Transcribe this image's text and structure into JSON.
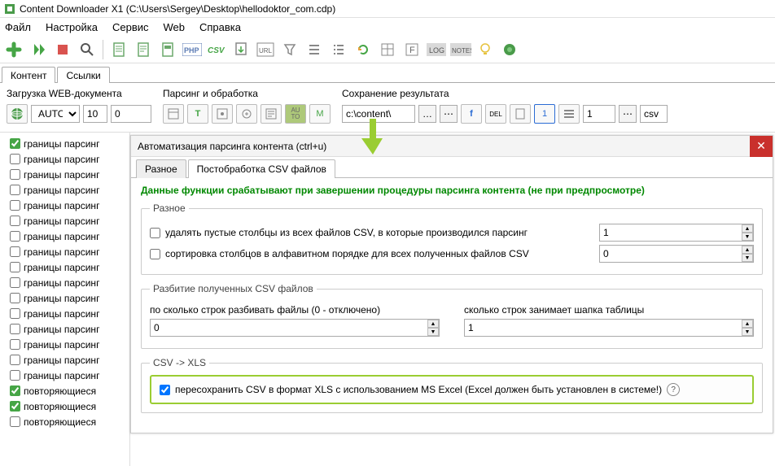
{
  "title": "Content Downloader X1 (C:\\Users\\Sergey\\Desktop\\hellodoktor_com.cdp)",
  "menu": {
    "file": "Файл",
    "settings": "Настройка",
    "service": "Сервис",
    "web": "Web",
    "help": "Справка"
  },
  "tabs": {
    "content": "Контент",
    "links": "Ссылки"
  },
  "ribbon": {
    "load": {
      "label": "Загрузка WEB-документа",
      "auto": "AUTO",
      "n1": "10",
      "n2": "0"
    },
    "parse": {
      "label": "Парсинг и обработка"
    },
    "save": {
      "label": "Сохранение результата",
      "path": "c:\\content\\",
      "num": "1",
      "fmt": "csv"
    }
  },
  "tree": {
    "items": [
      {
        "label": "границы парсинг",
        "checked": true
      },
      {
        "label": "границы парсинг",
        "checked": false
      },
      {
        "label": "границы парсинг",
        "checked": false
      },
      {
        "label": "границы парсинг",
        "checked": false
      },
      {
        "label": "границы парсинг",
        "checked": false
      },
      {
        "label": "границы парсинг",
        "checked": false
      },
      {
        "label": "границы парсинг",
        "checked": false
      },
      {
        "label": "границы парсинг",
        "checked": false
      },
      {
        "label": "границы парсинг",
        "checked": false
      },
      {
        "label": "границы парсинг",
        "checked": false
      },
      {
        "label": "границы парсинг",
        "checked": false
      },
      {
        "label": "границы парсинг",
        "checked": false
      },
      {
        "label": "границы парсинг",
        "checked": false
      },
      {
        "label": "границы парсинг",
        "checked": false
      },
      {
        "label": "границы парсинг",
        "checked": false
      },
      {
        "label": "границы парсинг",
        "checked": false
      },
      {
        "label": "повторяющиеся",
        "checked": true
      },
      {
        "label": "повторяющиеся",
        "checked": true
      },
      {
        "label": "повторяющиеся",
        "checked": false
      }
    ]
  },
  "dialog": {
    "title": "Автоматизация парсинга контента (ctrl+u)",
    "tabs": {
      "misc": "Разное",
      "post": "Постобработка CSV файлов"
    },
    "note": "Данные функции срабатывают при завершении процедуры парсинга контента (не при предпросмотре)",
    "fs1": {
      "legend": "Разное",
      "opt1": "удалять пустые столбцы из всех файлов CSV, в которые производился парсинг",
      "opt2": "сортировка столбцов в алфавитном порядке для всех полученных файлов CSV",
      "v1": "1",
      "v2": "0"
    },
    "fs2": {
      "legend": "Разбитие полученных CSV файлов",
      "lbl1": "по сколько строк разбивать файлы (0 - отключено)",
      "lbl2": "сколько строк занимает шапка таблицы",
      "v1": "0",
      "v2": "1"
    },
    "fs3": {
      "legend": "CSV -> XLS",
      "opt": "пересохранить CSV в формат XLS с использованием MS Excel (Excel должен быть установлен в системе!)"
    }
  }
}
